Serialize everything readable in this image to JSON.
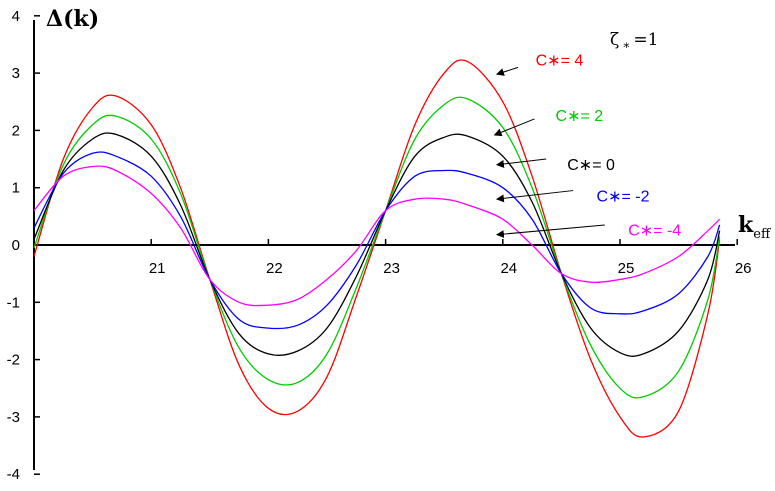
{
  "chart_data": {
    "type": "line",
    "ylabel": "Δ(k)",
    "xlabel": "k",
    "xlabel_sub": "eff",
    "xlim": [
      20,
      26.1
    ],
    "ylim": [
      -4,
      4
    ],
    "xticks": [
      "21",
      "22",
      "23",
      "24",
      "25",
      "26"
    ],
    "yticks": [
      "4",
      "3",
      "2",
      "1",
      "0",
      "-1",
      "-2",
      "-3",
      "-4"
    ],
    "parameter": {
      "symbol": "ζ",
      "sub": "∗",
      "text": "=1"
    },
    "series": [
      {
        "name": "C∗= 4",
        "color": "#ff0000",
        "x": [
          20.0,
          20.25,
          20.5,
          20.7,
          21.0,
          21.25,
          21.5,
          21.75,
          22.0,
          22.25,
          22.5,
          22.75,
          23.0,
          23.25,
          23.5,
          23.7,
          24.0,
          24.25,
          24.5,
          24.75,
          25.0,
          25.2,
          25.5,
          25.75,
          25.85
        ],
        "y": [
          -0.2,
          1.5,
          2.4,
          2.6,
          2.1,
          1.0,
          -0.6,
          -2.1,
          -2.85,
          -2.9,
          -2.3,
          -0.9,
          0.6,
          2.1,
          3.0,
          3.2,
          2.5,
          1.2,
          -0.5,
          -2.0,
          -3.0,
          -3.35,
          -2.9,
          -1.2,
          0.1
        ]
      },
      {
        "name": "C∗= 2",
        "color": "#00cc00",
        "x": [
          20.0,
          20.25,
          20.5,
          20.7,
          21.0,
          21.25,
          21.5,
          21.75,
          22.0,
          22.25,
          22.5,
          22.75,
          23.0,
          23.25,
          23.5,
          23.7,
          24.0,
          24.25,
          24.5,
          24.75,
          25.0,
          25.2,
          25.5,
          25.75,
          25.85
        ],
        "y": [
          -0.05,
          1.4,
          2.1,
          2.25,
          1.85,
          0.9,
          -0.6,
          -1.8,
          -2.35,
          -2.4,
          -1.9,
          -0.75,
          0.6,
          1.85,
          2.45,
          2.55,
          2.05,
          1.0,
          -0.5,
          -1.75,
          -2.5,
          -2.65,
          -2.2,
          -0.95,
          0.15
        ]
      },
      {
        "name": "C∗= 0",
        "color": "#000000",
        "x": [
          20.0,
          20.25,
          20.5,
          20.7,
          21.0,
          21.25,
          21.5,
          21.75,
          22.0,
          22.25,
          22.5,
          22.75,
          23.0,
          23.25,
          23.5,
          23.7,
          24.0,
          24.25,
          24.5,
          24.75,
          25.0,
          25.2,
          25.5,
          25.75,
          25.85
        ],
        "y": [
          0.1,
          1.3,
          1.85,
          1.93,
          1.55,
          0.7,
          -0.6,
          -1.55,
          -1.9,
          -1.85,
          -1.45,
          -0.55,
          0.6,
          1.55,
          1.88,
          1.9,
          1.55,
          0.75,
          -0.5,
          -1.45,
          -1.88,
          -1.9,
          -1.5,
          -0.6,
          0.25
        ]
      },
      {
        "name": "C∗= -2",
        "color": "#0000ff",
        "x": [
          20.0,
          20.25,
          20.5,
          20.7,
          21.0,
          21.25,
          21.5,
          21.75,
          22.0,
          22.25,
          22.5,
          22.75,
          23.0,
          23.25,
          23.5,
          23.7,
          24.0,
          24.25,
          24.5,
          24.75,
          25.0,
          25.2,
          25.5,
          25.75,
          25.85
        ],
        "y": [
          0.3,
          1.25,
          1.6,
          1.55,
          1.2,
          0.5,
          -0.6,
          -1.3,
          -1.45,
          -1.4,
          -1.05,
          -0.35,
          0.6,
          1.2,
          1.3,
          1.25,
          1.0,
          0.45,
          -0.5,
          -1.1,
          -1.2,
          -1.15,
          -0.85,
          -0.2,
          0.35
        ]
      },
      {
        "name": "C∗= -4",
        "color": "#ff00ff",
        "x": [
          20.0,
          20.25,
          20.5,
          20.7,
          21.0,
          21.25,
          21.5,
          21.75,
          22.0,
          22.25,
          22.5,
          22.75,
          23.0,
          23.25,
          23.5,
          23.7,
          24.0,
          24.25,
          24.5,
          24.75,
          25.0,
          25.2,
          25.5,
          25.75,
          25.85
        ],
        "y": [
          0.6,
          1.2,
          1.37,
          1.3,
          0.9,
          0.3,
          -0.6,
          -1.0,
          -1.05,
          -0.95,
          -0.6,
          -0.1,
          0.6,
          0.8,
          0.8,
          0.7,
          0.45,
          0.0,
          -0.5,
          -0.65,
          -0.6,
          -0.5,
          -0.2,
          0.25,
          0.45
        ]
      }
    ],
    "annotations": [
      {
        "text": "C∗= 4",
        "color": "#ff0000",
        "text_at": [
          24.28,
          3.22
        ],
        "arrow_from": [
          24.13,
          3.1
        ],
        "arrow_to": [
          23.95,
          2.98
        ]
      },
      {
        "text": "C∗= 2",
        "color": "#00cc00",
        "text_at": [
          24.45,
          2.25
        ],
        "arrow_from": [
          24.27,
          2.2
        ],
        "arrow_to": [
          23.93,
          1.92
        ]
      },
      {
        "text": "C∗= 0",
        "color": "#000000",
        "text_at": [
          24.55,
          1.4
        ],
        "arrow_from": [
          24.37,
          1.5
        ],
        "arrow_to": [
          23.95,
          1.4
        ]
      },
      {
        "text": "C∗= -2",
        "color": "#0000ff",
        "text_at": [
          24.8,
          0.85
        ],
        "arrow_from": [
          24.6,
          0.95
        ],
        "arrow_to": [
          23.95,
          0.8
        ]
      },
      {
        "text": "C∗= -4",
        "color": "#ff00ff",
        "text_at": [
          25.07,
          0.25
        ],
        "arrow_from": [
          24.87,
          0.35
        ],
        "arrow_to": [
          23.95,
          0.18
        ]
      }
    ],
    "grid": false,
    "legend": "inline-labels"
  }
}
